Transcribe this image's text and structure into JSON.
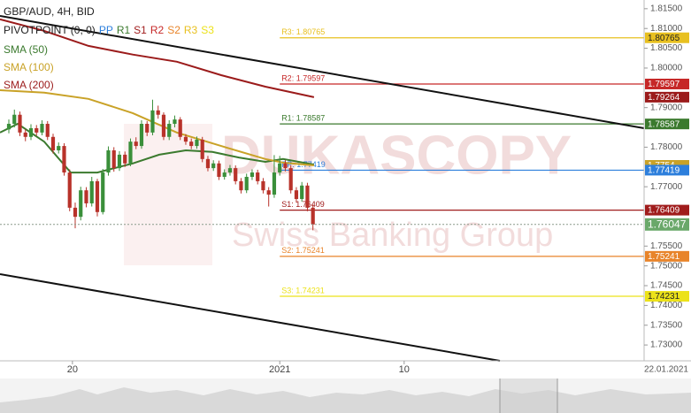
{
  "chart_data": {
    "type": "candlestick",
    "title": "GBP/AUD, 4H, BID",
    "indicator_label": "PIVOTPOINT (0, 0)",
    "watermark": {
      "brand": "DUKASCOPY",
      "tagline": "Swiss Banking Group"
    },
    "date_label": "22.01.2021",
    "up_color": "#3a8f3a",
    "down_color": "#b8322a",
    "open": [
      1.7845,
      1.7859,
      1.7882,
      1.7837,
      1.7826,
      1.7848,
      1.7837,
      1.7859,
      1.7826,
      1.7792,
      1.7803,
      1.7736,
      1.7647,
      1.7624,
      1.7691,
      1.7658,
      1.7714,
      1.7636,
      1.7736,
      1.7792,
      1.7747,
      1.7781,
      1.7759,
      1.7814,
      1.7803,
      1.7859,
      1.7837,
      1.7893,
      1.7882,
      1.7826,
      1.7859,
      1.787,
      1.7826,
      1.7814,
      1.7803,
      1.7819,
      1.777,
      1.7747,
      1.7759,
      1.7725,
      1.7736,
      1.7747,
      1.7714,
      1.7691,
      1.7725,
      1.7736,
      1.7714,
      1.7691,
      1.768,
      1.7736,
      1.7759,
      1.7747,
      1.7691,
      1.7669,
      1.7703,
      1.7647
    ],
    "high": [
      1.787,
      1.7895,
      1.789,
      1.7845,
      1.7858,
      1.7856,
      1.7868,
      1.7866,
      1.7834,
      1.7812,
      1.781,
      1.7744,
      1.766,
      1.77,
      1.7699,
      1.7725,
      1.772,
      1.7745,
      1.7802,
      1.78,
      1.779,
      1.7789,
      1.7822,
      1.7825,
      1.7868,
      1.7866,
      1.792,
      1.7905,
      1.7888,
      1.7868,
      1.788,
      1.7876,
      1.7833,
      1.7822,
      1.7827,
      1.7826,
      1.7778,
      1.7767,
      1.7766,
      1.7744,
      1.7755,
      1.7754,
      1.7722,
      1.7733,
      1.7744,
      1.7743,
      1.7722,
      1.7699,
      1.778,
      1.7778,
      1.7767,
      1.7754,
      1.7699,
      1.7712,
      1.771,
      1.7655
    ],
    "low": [
      1.7835,
      1.785,
      1.7828,
      1.7815,
      1.7818,
      1.7829,
      1.783,
      1.7818,
      1.7784,
      1.7784,
      1.7728,
      1.7638,
      1.7595,
      1.7615,
      1.7648,
      1.765,
      1.7625,
      1.763,
      1.7728,
      1.7738,
      1.774,
      1.775,
      1.7752,
      1.7795,
      1.7796,
      1.7828,
      1.783,
      1.7872,
      1.7818,
      1.7818,
      1.785,
      1.7818,
      1.7806,
      1.7795,
      1.7796,
      1.7762,
      1.7739,
      1.774,
      1.7717,
      1.7718,
      1.7728,
      1.7706,
      1.7683,
      1.7684,
      1.7717,
      1.7706,
      1.7683,
      1.765,
      1.7672,
      1.7728,
      1.7739,
      1.7683,
      1.766,
      1.7662,
      1.7638,
      1.759
    ],
    "close": [
      1.7859,
      1.7882,
      1.7837,
      1.7826,
      1.7848,
      1.7837,
      1.7859,
      1.7826,
      1.7792,
      1.7803,
      1.7736,
      1.7647,
      1.7624,
      1.7691,
      1.7658,
      1.7714,
      1.7636,
      1.7736,
      1.7792,
      1.7747,
      1.7781,
      1.7759,
      1.7814,
      1.7803,
      1.7859,
      1.7837,
      1.7893,
      1.7882,
      1.7826,
      1.7859,
      1.787,
      1.7826,
      1.7814,
      1.7803,
      1.7819,
      1.777,
      1.7747,
      1.7759,
      1.7725,
      1.7736,
      1.7747,
      1.7714,
      1.7691,
      1.7725,
      1.7736,
      1.7714,
      1.7691,
      1.768,
      1.7736,
      1.7759,
      1.7747,
      1.7691,
      1.7669,
      1.7703,
      1.7647,
      1.76047
    ],
    "series": [
      {
        "name": "SMA (50)",
        "color": "#3b7a2e",
        "x": [
          -1.6,
          1.6,
          6.4,
          11.2,
          16,
          22.4,
          27.2,
          32,
          36.8,
          41.6,
          46.4,
          49.6,
          55.2
        ],
        "values": [
          1.7837,
          1.7859,
          1.7814,
          1.7736,
          1.7736,
          1.7759,
          1.7781,
          1.7792,
          1.7788,
          1.7774,
          1.7763,
          1.777,
          1.7756
        ]
      },
      {
        "name": "SMA (100)",
        "color": "#c9a227",
        "x": [
          -1.6,
          6.4,
          14.4,
          22.4,
          30.4,
          38.4,
          46.4,
          49.6,
          55.2
        ],
        "values": [
          1.7944,
          1.7938,
          1.7922,
          1.7886,
          1.7837,
          1.7803,
          1.777,
          1.7761,
          1.7754
        ]
      },
      {
        "name": "SMA (200)",
        "color": "#9b1b1b",
        "x": [
          -1.6,
          6.4,
          14.4,
          22.4,
          30.4,
          38.4,
          46.4,
          55.2
        ],
        "values": [
          1.8123,
          1.8094,
          1.8056,
          1.8034,
          1.8016,
          1.7982,
          1.7953,
          1.79264
        ]
      }
    ],
    "pivots": [
      {
        "name": "PP",
        "label": "PP: 1.77419",
        "value": 1.77419,
        "color": "#2d7fdc"
      },
      {
        "name": "R1",
        "label": "R1: 1.78587",
        "value": 1.78587,
        "color": "#3b7a2e"
      },
      {
        "name": "S1",
        "label": "S1: 1.76409",
        "value": 1.76409,
        "color": "#a01c1c"
      },
      {
        "name": "R2",
        "label": "R2: 1.79597",
        "value": 1.79597,
        "color": "#c62828"
      },
      {
        "name": "S2",
        "label": "S2: 1.75241",
        "value": 1.75241,
        "color": "#e8842a"
      },
      {
        "name": "R3",
        "label": "R3: 1.80765",
        "value": 1.80765,
        "color": "#e8c020"
      },
      {
        "name": "S3",
        "label": "S3: 1.74231",
        "value": 1.74231,
        "color": "#ece21a"
      }
    ],
    "xlim": [
      -1.6,
      114.9
    ],
    "xticks": [
      {
        "value": 11.5,
        "label": "20"
      },
      {
        "value": 49,
        "label": "2021"
      },
      {
        "value": 71.5,
        "label": "10"
      }
    ],
    "ylim": [
      1.726,
      1.8172
    ],
    "yticks": [
      {
        "value": 1.815,
        "label": "1.81500"
      },
      {
        "value": 1.81,
        "label": "1.81000"
      },
      {
        "value": 1.805,
        "label": "1.80500"
      },
      {
        "value": 1.8,
        "label": "1.80000"
      },
      {
        "value": 1.79,
        "label": "1.79000"
      },
      {
        "value": 1.78,
        "label": "1.78000"
      },
      {
        "value": 1.77,
        "label": "1.77000"
      },
      {
        "value": 1.755,
        "label": "1.75500"
      },
      {
        "value": 1.75,
        "label": "1.75000"
      },
      {
        "value": 1.745,
        "label": "1.74500"
      },
      {
        "value": 1.74,
        "label": "1.74000"
      },
      {
        "value": 1.735,
        "label": "1.73500"
      },
      {
        "value": 1.73,
        "label": "1.73000"
      }
    ],
    "grid": false
  }
}
